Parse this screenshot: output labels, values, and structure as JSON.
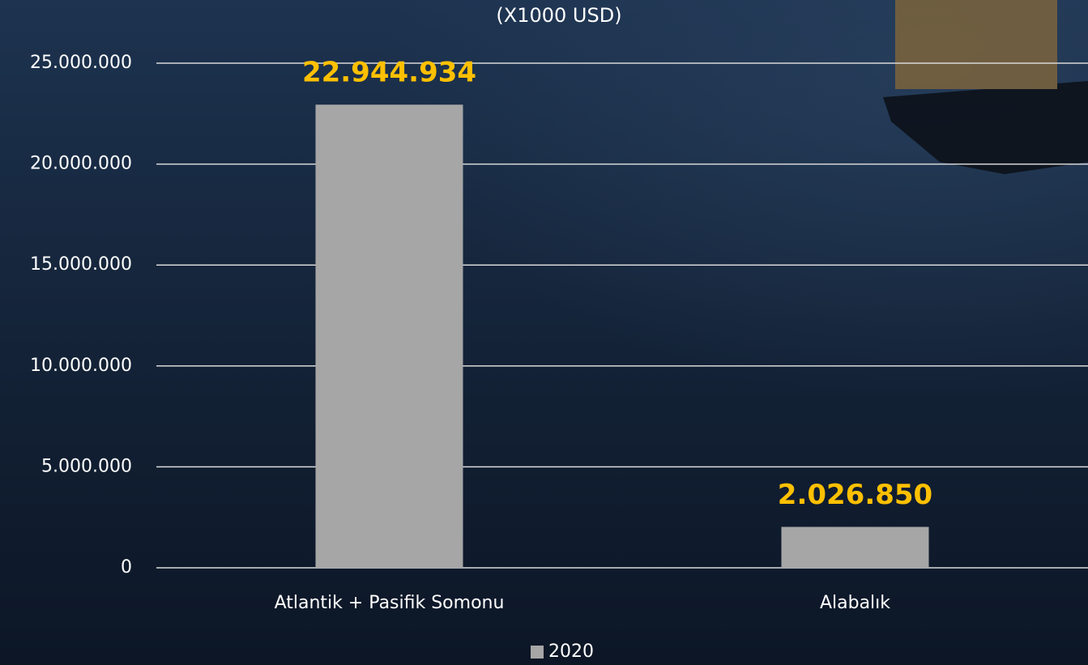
{
  "chart_data": {
    "type": "bar",
    "subtitle": "(X1000 USD)",
    "categories": [
      "Atlantik + Pasifik Somonu",
      "Alabalık"
    ],
    "series": [
      {
        "name": "2020",
        "color": "#a6a6a6",
        "values": [
          22944934,
          2026850
        ],
        "value_labels": [
          "22.944.934",
          "2.026.850"
        ]
      }
    ],
    "value_label_color": "#ffc000",
    "ylim": [
      0,
      25000000
    ],
    "yticks": [
      0,
      {
        "value": 5000000,
        "label": "5.000.000"
      },
      {
        "value": 10000000,
        "label": "10.000.000"
      },
      {
        "value": 15000000,
        "label": "15.000.000"
      },
      {
        "value": 20000000,
        "label": "20.000.000"
      },
      {
        "value": 25000000,
        "label": "25.000.000"
      }
    ],
    "grid": true,
    "legend": "bottom"
  }
}
